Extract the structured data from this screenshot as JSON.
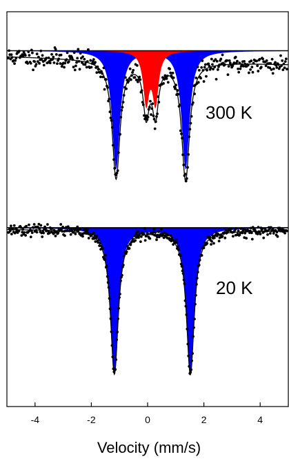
{
  "chart_data": {
    "type": "scatter",
    "subtype": "mossbauer-spectra",
    "xlabel": "Velocity (mm/s)",
    "xlim": [
      -5.0,
      5.0
    ],
    "xticks": [
      -4,
      -2,
      0,
      2,
      4
    ],
    "xtick_labels": [
      "-4",
      "-2",
      "0",
      "2",
      "4"
    ],
    "ylabel": "",
    "grid": false,
    "legend": "none",
    "colors": {
      "data_points": "#000000",
      "fit_line": "#000000",
      "doublet_1": "#0000ff",
      "doublet_2": "#ff0000",
      "frame": "#000000"
    },
    "panels": [
      {
        "label": "300 K",
        "baseline": 1.0,
        "ylim": [
          0.845,
          1.028
        ],
        "components": [
          {
            "color": "blue",
            "centers": [
              -1.12,
              1.35
            ],
            "depth": 0.135,
            "hwhm": 0.17,
            "shape": "lorentzian"
          },
          {
            "color": "red",
            "centers": [
              -0.05,
              0.28
            ],
            "depth": 0.058,
            "hwhm": 0.13,
            "shape": "lorentzian"
          }
        ],
        "fit_baseline": 0.989,
        "fit_slope": -0.0009,
        "points": {
          "x_start": -4.95,
          "x_end": 4.95,
          "count": 360,
          "noise": 0.0055,
          "seed": 11
        }
      },
      {
        "label": "20 K",
        "baseline": 1.0,
        "ylim": [
          0.785,
          1.028
        ],
        "components": [
          {
            "color": "blue",
            "centers": [
              -1.18,
              1.52
            ],
            "depth": 0.195,
            "hwhm": 0.17,
            "shape": "lorentzian"
          }
        ],
        "fit_baseline": 0.997,
        "fit_slope": -0.0002,
        "points": {
          "x_start": -4.95,
          "x_end": 4.95,
          "count": 420,
          "noise": 0.0035,
          "seed": 23
        }
      }
    ]
  }
}
